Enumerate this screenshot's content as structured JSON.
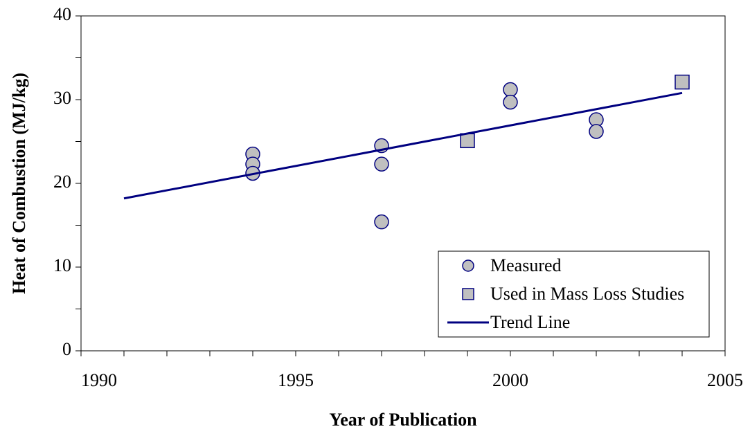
{
  "chart_data": {
    "type": "scatter",
    "xlabel": "Year of Publication",
    "ylabel": "Heat of Combustion (MJ/kg)",
    "xlim": [
      1990,
      2005
    ],
    "xticks": [
      1990,
      1995,
      2000,
      2005
    ],
    "xminorticks": [
      1991,
      1992,
      1993,
      1994,
      1996,
      1997,
      1998,
      1999,
      2001,
      2002,
      2003,
      2004
    ],
    "ylim": [
      0,
      40
    ],
    "yticks": [
      0,
      10,
      20,
      30,
      40
    ],
    "yminorticks": [
      5,
      15,
      25,
      35
    ],
    "legend": "lower right",
    "series": [
      {
        "name": "Measured",
        "marker": "circle",
        "color": "#c0c0c0",
        "x": [
          1994,
          1994,
          1994,
          1997,
          1997,
          1997,
          2000,
          2000,
          2002,
          2002
        ],
        "values": [
          23.5,
          22.3,
          21.2,
          24.5,
          22.3,
          15.4,
          31.2,
          29.7,
          27.6,
          26.2
        ]
      },
      {
        "name": "Used in Mass Loss Studies",
        "marker": "square",
        "color": "#c0c0c0",
        "x": [
          1999,
          2004
        ],
        "values": [
          25.1,
          32.1
        ]
      },
      {
        "name": "Trend Line",
        "marker": "line",
        "color": "#000080",
        "x": [
          1991,
          2004
        ],
        "values": [
          18.2,
          30.8
        ]
      }
    ]
  }
}
